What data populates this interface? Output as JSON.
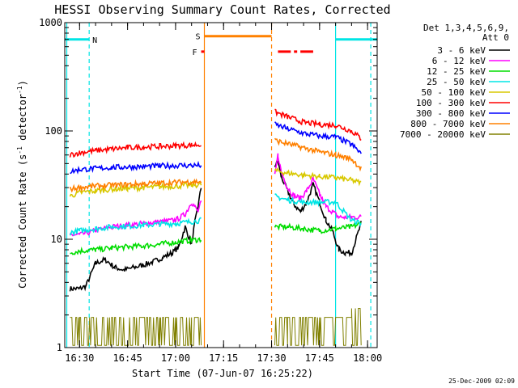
{
  "chart_data": {
    "type": "line",
    "title": "HESSI Observing Summary Count Rates, Corrected",
    "xlabel": "Start Time (07-Jun-07 16:25:22)",
    "ylabel_main": "Corrected Count Rate (s",
    "ylabel_sup1": "-1",
    "ylabel_mid": " detector",
    "ylabel_sup2": "-1",
    "ylabel_end": ")",
    "y_scale": "log",
    "ylim": [
      1,
      1000
    ],
    "x_start": "16:25:22",
    "x_end": "18:03:00",
    "x_ticks": [
      "16:30",
      "16:45",
      "17:00",
      "17:15",
      "17:30",
      "17:45",
      "18:00"
    ],
    "y_ticks": [
      "1",
      "10",
      "100",
      "1000"
    ],
    "legend_header": [
      "Det 1,3,4,5,6,9,",
      "Att 0"
    ],
    "legend_position": "right",
    "timestamp": "25-Dec-2009 02:09",
    "series": [
      {
        "name": "3 - 6 keV",
        "color": "#000000",
        "x": [
          "16:27",
          "16:30",
          "16:32",
          "16:35",
          "16:38",
          "16:41",
          "16:44",
          "16:47",
          "16:50",
          "16:53",
          "16:56",
          "16:59",
          "17:01",
          "17:03",
          "17:05",
          "17:06",
          "17:07",
          "17:08",
          "17:31",
          "17:32",
          "17:33",
          "17:35",
          "17:37",
          "17:39",
          "17:41",
          "17:43",
          "17:45",
          "17:47",
          "17:49",
          "17:51",
          "17:53",
          "17:55",
          "17:58"
        ],
        "y": [
          3.5,
          3.5,
          3.7,
          6,
          6.5,
          5.5,
          5.2,
          5.5,
          5.8,
          6.2,
          6.8,
          7.5,
          8.5,
          13,
          9,
          14,
          20,
          30,
          48,
          52,
          38,
          28,
          21,
          18,
          22,
          32,
          22,
          15,
          12,
          8,
          7.5,
          7.5,
          14
        ]
      },
      {
        "name": "6 - 12 keV",
        "color": "#ff00ff",
        "x": [
          "16:27",
          "16:30",
          "16:35",
          "16:40",
          "16:45",
          "16:50",
          "16:55",
          "17:00",
          "17:03",
          "17:05",
          "17:06",
          "17:07",
          "17:08",
          "17:31",
          "17:32",
          "17:33",
          "17:35",
          "17:37",
          "17:39",
          "17:41",
          "17:43",
          "17:45",
          "17:47",
          "17:49",
          "17:51",
          "17:53",
          "17:55",
          "17:58"
        ],
        "y": [
          11,
          11,
          12,
          13,
          13.5,
          14,
          14.5,
          15,
          17,
          22,
          20,
          18,
          22,
          38,
          60,
          42,
          30,
          25,
          24,
          28,
          36,
          26,
          20,
          18,
          16,
          16,
          16,
          16
        ]
      },
      {
        "name": "12 - 25 keV",
        "color": "#00dd00",
        "x": [
          "16:27",
          "16:30",
          "16:35",
          "16:40",
          "16:45",
          "16:50",
          "16:55",
          "17:00",
          "17:05",
          "17:08",
          "17:31",
          "17:35",
          "17:40",
          "17:45",
          "17:50",
          "17:55",
          "17:58"
        ],
        "y": [
          7.5,
          7.8,
          8,
          8.3,
          8.5,
          8.7,
          9,
          9.4,
          9.8,
          10,
          13,
          13,
          12.5,
          12,
          12.5,
          13,
          14
        ]
      },
      {
        "name": "25 - 50 keV",
        "color": "#00e5e5",
        "x": [
          "16:27",
          "16:30",
          "16:35",
          "16:40",
          "16:45",
          "16:50",
          "16:55",
          "17:00",
          "17:05",
          "17:08",
          "17:31",
          "17:35",
          "17:40",
          "17:45",
          "17:50",
          "17:55",
          "17:58"
        ],
        "y": [
          11.5,
          12,
          12.5,
          13,
          13.2,
          13.5,
          13.8,
          14,
          14.5,
          15,
          25,
          23,
          22,
          22,
          22,
          15,
          14
        ]
      },
      {
        "name": "50 - 100 keV",
        "color": "#d8c800",
        "x": [
          "16:27",
          "16:30",
          "16:35",
          "16:40",
          "16:45",
          "16:50",
          "16:55",
          "17:00",
          "17:05",
          "17:08",
          "17:31",
          "17:35",
          "17:40",
          "17:45",
          "17:50",
          "17:55",
          "17:58"
        ],
        "y": [
          25,
          27,
          28,
          29,
          29.5,
          30,
          30.5,
          31,
          31.5,
          32,
          43,
          41,
          39,
          38,
          37,
          35,
          33
        ]
      },
      {
        "name": "100 - 300 keV",
        "color": "#ff0000",
        "x": [
          "16:27",
          "16:30",
          "16:35",
          "16:40",
          "16:45",
          "16:50",
          "16:55",
          "17:00",
          "17:05",
          "17:08",
          "17:31",
          "17:35",
          "17:40",
          "17:45",
          "17:50",
          "17:55",
          "17:58"
        ],
        "y": [
          60,
          63,
          66,
          68,
          70,
          71,
          72,
          73,
          74,
          75,
          150,
          135,
          120,
          115,
          113,
          100,
          85
        ]
      },
      {
        "name": "300 - 800 keV",
        "color": "#0000ff",
        "x": [
          "16:27",
          "16:30",
          "16:35",
          "16:40",
          "16:45",
          "16:50",
          "16:55",
          "17:00",
          "17:05",
          "17:08",
          "17:31",
          "17:35",
          "17:40",
          "17:45",
          "17:50",
          "17:55",
          "17:58"
        ],
        "y": [
          42,
          44,
          45,
          46,
          46.5,
          47,
          47.5,
          48,
          48,
          48,
          115,
          105,
          95,
          90,
          88,
          75,
          62
        ]
      },
      {
        "name": "800 - 7000 keV",
        "color": "#ff8000",
        "x": [
          "16:27",
          "16:30",
          "16:35",
          "16:40",
          "16:45",
          "16:50",
          "16:55",
          "17:00",
          "17:05",
          "17:08",
          "17:31",
          "17:35",
          "17:40",
          "17:45",
          "17:50",
          "17:55",
          "17:58"
        ],
        "y": [
          29,
          30,
          31,
          31.5,
          32,
          32.5,
          33,
          33.5,
          34,
          34,
          82,
          76,
          70,
          64,
          60,
          55,
          45
        ]
      },
      {
        "name": "7000 - 20000 keV",
        "color": "#808000",
        "x": [
          "16:27",
          "16:30",
          "16:35",
          "16:40",
          "16:45",
          "16:50",
          "16:55",
          "17:00",
          "17:05",
          "17:08",
          "17:31",
          "17:35",
          "17:40",
          "17:45",
          "17:50",
          "17:55",
          "17:58"
        ],
        "y": [
          1.9,
          1.9,
          1.9,
          1.9,
          1.9,
          1.9,
          1.9,
          1.9,
          1.9,
          1.9,
          1.9,
          1.9,
          1.9,
          1.9,
          1.9,
          2.3,
          2.3
        ]
      }
    ],
    "flags": [
      {
        "label": "N",
        "color": "#00e5e5",
        "y": 700,
        "segments": [
          [
            "16:25:22",
            "16:33"
          ],
          [
            "17:50",
            "18:03"
          ]
        ]
      },
      {
        "label": "S",
        "color": "#ff8000",
        "y": 750,
        "segments": [
          [
            "17:09",
            "17:30"
          ]
        ]
      },
      {
        "label": "F",
        "color": "#ff0000",
        "y": 540,
        "segments": [
          [
            "17:08",
            "17:09"
          ],
          [
            "17:32",
            "17:36"
          ],
          [
            "17:37",
            "17:38"
          ],
          [
            "17:39",
            "17:43"
          ]
        ]
      }
    ],
    "vlines": [
      {
        "t": "16:33",
        "color": "#00e5e5",
        "style": "dashed"
      },
      {
        "t": "17:09",
        "color": "#ff8000",
        "style": "solid"
      },
      {
        "t": "17:30",
        "color": "#ff8000",
        "style": "dashed"
      },
      {
        "t": "17:50",
        "color": "#00e5e5",
        "style": "solid"
      },
      {
        "t": "18:01",
        "color": "#00e5e5",
        "style": "dashed"
      },
      {
        "t": "16:26",
        "color": "#00e5e5",
        "style": "solid"
      }
    ]
  }
}
